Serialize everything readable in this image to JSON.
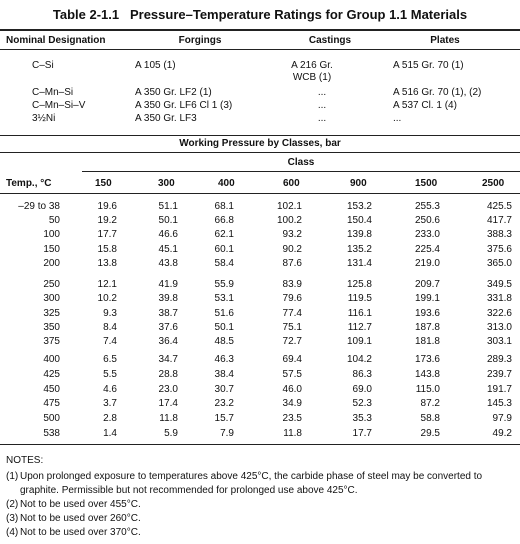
{
  "title": "Table 2-1.1   Pressure–Temperature Ratings for Group 1.1 Materials",
  "materials": {
    "headers": [
      "Nominal Designation",
      "Forgings",
      "Castings",
      "Plates"
    ],
    "rows": [
      [
        "C–Si",
        "A 105 (1)",
        "A 216 Gr. WCB (1)",
        "A 515 Gr. 70 (1)"
      ],
      [
        "C–Mn–Si",
        "A 350 Gr. LF2 (1)",
        "...",
        "A 516 Gr. 70 (1), (2)"
      ],
      [
        "C–Mn–Si–V",
        "A 350 Gr. LF6 Cl 1 (3)",
        "...",
        "A 537 Cl. 1 (4)"
      ],
      [
        "3½Ni",
        "A 350 Gr. LF3",
        "...",
        "..."
      ]
    ]
  },
  "pressure": {
    "caption": "Working Pressure by Classes, bar",
    "class_label": "Class",
    "temp_label": "Temp., °C",
    "classes": [
      "150",
      "300",
      "400",
      "600",
      "900",
      "1500",
      "2500"
    ],
    "groups": [
      [
        [
          "–29 to 38",
          "19.6",
          "51.1",
          "68.1",
          "102.1",
          "153.2",
          "255.3",
          "425.5"
        ],
        [
          "50",
          "19.2",
          "50.1",
          "66.8",
          "100.2",
          "150.4",
          "250.6",
          "417.7"
        ],
        [
          "100",
          "17.7",
          "46.6",
          "62.1",
          "93.2",
          "139.8",
          "233.0",
          "388.3"
        ],
        [
          "150",
          "15.8",
          "45.1",
          "60.1",
          "90.2",
          "135.2",
          "225.4",
          "375.6"
        ],
        [
          "200",
          "13.8",
          "43.8",
          "58.4",
          "87.6",
          "131.4",
          "219.0",
          "365.0"
        ]
      ],
      [
        [
          "250",
          "12.1",
          "41.9",
          "55.9",
          "83.9",
          "125.8",
          "209.7",
          "349.5"
        ],
        [
          "300",
          "10.2",
          "39.8",
          "53.1",
          "79.6",
          "119.5",
          "199.1",
          "331.8"
        ],
        [
          "325",
          "9.3",
          "38.7",
          "51.6",
          "77.4",
          "116.1",
          "193.6",
          "322.6"
        ],
        [
          "350",
          "8.4",
          "37.6",
          "50.1",
          "75.1",
          "112.7",
          "187.8",
          "313.0"
        ],
        [
          "375",
          "7.4",
          "36.4",
          "48.5",
          "72.7",
          "109.1",
          "181.8",
          "303.1"
        ]
      ],
      [
        [
          "400",
          "6.5",
          "34.7",
          "46.3",
          "69.4",
          "104.2",
          "173.6",
          "289.3"
        ],
        [
          "425",
          "5.5",
          "28.8",
          "38.4",
          "57.5",
          "86.3",
          "143.8",
          "239.7"
        ],
        [
          "450",
          "4.6",
          "23.0",
          "30.7",
          "46.0",
          "69.0",
          "115.0",
          "191.7"
        ],
        [
          "475",
          "3.7",
          "17.4",
          "23.2",
          "34.9",
          "52.3",
          "87.2",
          "145.3"
        ],
        [
          "500",
          "2.8",
          "11.8",
          "15.7",
          "23.5",
          "35.3",
          "58.8",
          "97.9"
        ],
        [
          "538",
          "1.4",
          "5.9",
          "7.9",
          "11.8",
          "17.7",
          "29.5",
          "49.2"
        ]
      ]
    ]
  },
  "notes": {
    "heading": "NOTES:",
    "items": [
      {
        "marker": "(1)",
        "text": "Upon prolonged exposure to temperatures above 425°C, the carbide phase of steel may be converted to graphite. Permissible but not recommended for prolonged use above 425°C."
      },
      {
        "marker": "(2)",
        "text": "Not to be used over 455°C."
      },
      {
        "marker": "(3)",
        "text": "Not to be used over 260°C."
      },
      {
        "marker": "(4)",
        "text": "Not to be used over 370°C."
      }
    ]
  }
}
